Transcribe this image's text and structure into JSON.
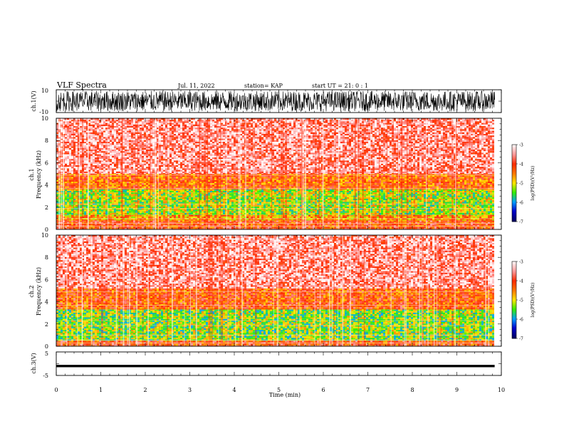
{
  "header": {
    "title": "VLF Spectra",
    "date": "Jul. 11, 2022",
    "station": "station= KAP",
    "start": "start UT = 21: 0 : 1"
  },
  "panels": {
    "ch1_wave": {
      "ylabel": "ch.1(V)",
      "ymax_label": "10",
      "ymin_label": "-10"
    },
    "ch1_spec": {
      "ylabel_top": "ch.1",
      "ylabel": "Frequency (kHz)"
    },
    "ch2_spec": {
      "ylabel_top": "ch.2",
      "ylabel": "Frequency (kHz)"
    },
    "ch3_wave": {
      "ylabel": "ch.3(V)",
      "ymax_label": "5",
      "ymin_label": "-5"
    }
  },
  "colorbar": {
    "label": "log(PSD)(V²/Hz)",
    "ticks": [
      "-3",
      "-4",
      "-5",
      "-6",
      "-7"
    ],
    "colors": [
      "#fff5f5",
      "#ffb0b0",
      "#ff2a00",
      "#ffe600",
      "#33ee00",
      "#00a0ff",
      "#0000cc",
      "#000066"
    ]
  },
  "chart_data": [
    {
      "type": "line",
      "name": "ch1_waveform",
      "xlabel": "",
      "ylabel": "ch.1(V)",
      "xlim": [
        0,
        10
      ],
      "ylim": [
        -10,
        10
      ],
      "data_extent_min": 9.85,
      "amplitude_approx": 9
    },
    {
      "type": "heatmap",
      "name": "ch1_spectrogram",
      "ylabel": "Frequency (kHz)",
      "xlim": [
        0,
        10
      ],
      "ylim": [
        0,
        10
      ],
      "yticks": [
        0,
        2,
        4,
        6,
        8,
        10
      ],
      "data_extent_min": 9.85,
      "bands_kHz_log_psd": [
        {
          "from": 0,
          "to": 0.8,
          "level": -4.1
        },
        {
          "from": 0.8,
          "to": 1.3,
          "level": -4.6
        },
        {
          "from": 1.3,
          "to": 3.6,
          "level": -5.2
        },
        {
          "from": 3.6,
          "to": 5.0,
          "level": -4.3
        },
        {
          "from": 5.0,
          "to": 10,
          "level": -3.5
        }
      ]
    },
    {
      "type": "heatmap",
      "name": "ch2_spectrogram",
      "ylabel": "Frequency (kHz)",
      "xlim": [
        0,
        10
      ],
      "ylim": [
        0,
        10
      ],
      "yticks": [
        0,
        2,
        4,
        6,
        8,
        10
      ],
      "data_extent_min": 9.85,
      "bands_kHz_log_psd": [
        {
          "from": 0,
          "to": 0.5,
          "level": -4.1
        },
        {
          "from": 0.5,
          "to": 3.3,
          "level": -5.3
        },
        {
          "from": 3.3,
          "to": 5.2,
          "level": -4.2
        },
        {
          "from": 5.2,
          "to": 10,
          "level": -3.5
        }
      ]
    },
    {
      "type": "line",
      "name": "ch3_waveform",
      "ylabel": "ch.3(V)",
      "xlabel": "Time (min)",
      "xlim": [
        0,
        10
      ],
      "ylim": [
        -5,
        5
      ],
      "xticks": [
        "0",
        "1",
        "2",
        "3",
        "4",
        "5",
        "6",
        "7",
        "8",
        "9",
        "10"
      ],
      "data_extent_min": 9.85,
      "level": -1,
      "amplitude_approx": 0.5
    }
  ]
}
